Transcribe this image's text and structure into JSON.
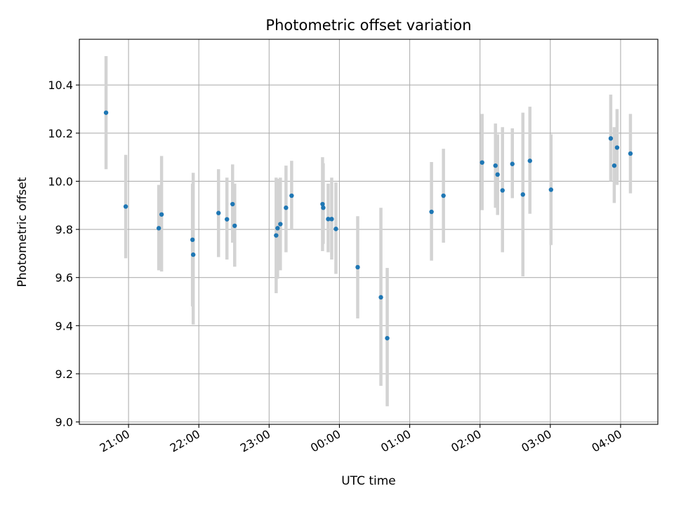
{
  "chart_data": {
    "type": "scatter",
    "title": "Photometric offset variation",
    "xlabel": "UTC time",
    "ylabel": "Photometric offset",
    "x_unit": "hours since 20:00 UTC",
    "xlim": [
      0.3,
      8.53
    ],
    "ylim": [
      8.99,
      10.59
    ],
    "grid": true,
    "x_ticks": [
      {
        "value": 1,
        "label": "21:00"
      },
      {
        "value": 2,
        "label": "22:00"
      },
      {
        "value": 3,
        "label": "23:00"
      },
      {
        "value": 4,
        "label": "00:00"
      },
      {
        "value": 5,
        "label": "01:00"
      },
      {
        "value": 6,
        "label": "02:00"
      },
      {
        "value": 7,
        "label": "03:00"
      },
      {
        "value": 8,
        "label": "04:00"
      }
    ],
    "y_ticks": [
      9.0,
      9.2,
      9.4,
      9.6,
      9.8,
      10.0,
      10.2,
      10.4
    ],
    "y_tick_labels": [
      "9.0",
      "9.2",
      "9.4",
      "9.6",
      "9.8",
      "10.0",
      "10.2",
      "10.4"
    ],
    "series": [
      {
        "name": "offset",
        "marker_color": "#1f77b4",
        "errorbar_color": "#d3d3d3",
        "points": [
          {
            "x": 0.68,
            "y": 10.285,
            "lo": 10.05,
            "hi": 10.52
          },
          {
            "x": 0.96,
            "y": 9.895,
            "lo": 9.68,
            "hi": 10.11
          },
          {
            "x": 1.43,
            "y": 9.805,
            "lo": 9.63,
            "hi": 9.985
          },
          {
            "x": 1.47,
            "y": 9.862,
            "lo": 9.625,
            "hi": 10.105
          },
          {
            "x": 1.91,
            "y": 9.757,
            "lo": 9.48,
            "hi": 9.99
          },
          {
            "x": 1.92,
            "y": 9.695,
            "lo": 9.405,
            "hi": 10.035
          },
          {
            "x": 2.28,
            "y": 9.868,
            "lo": 9.685,
            "hi": 10.05
          },
          {
            "x": 2.4,
            "y": 9.842,
            "lo": 9.675,
            "hi": 10.015
          },
          {
            "x": 2.48,
            "y": 9.905,
            "lo": 9.745,
            "hi": 10.07
          },
          {
            "x": 2.51,
            "y": 9.815,
            "lo": 9.645,
            "hi": 9.99
          },
          {
            "x": 3.1,
            "y": 9.775,
            "lo": 9.535,
            "hi": 10.015
          },
          {
            "x": 3.12,
            "y": 9.805,
            "lo": 9.595,
            "hi": 10.01
          },
          {
            "x": 3.16,
            "y": 9.822,
            "lo": 9.63,
            "hi": 10.015
          },
          {
            "x": 3.24,
            "y": 9.89,
            "lo": 9.705,
            "hi": 10.065
          },
          {
            "x": 3.32,
            "y": 9.94,
            "lo": 9.8,
            "hi": 10.085
          },
          {
            "x": 3.76,
            "y": 9.905,
            "lo": 9.71,
            "hi": 10.1
          },
          {
            "x": 3.77,
            "y": 9.89,
            "lo": 9.74,
            "hi": 10.075
          },
          {
            "x": 3.84,
            "y": 9.843,
            "lo": 9.705,
            "hi": 9.99
          },
          {
            "x": 3.89,
            "y": 9.843,
            "lo": 9.675,
            "hi": 10.015
          },
          {
            "x": 3.95,
            "y": 9.802,
            "lo": 9.615,
            "hi": 9.995
          },
          {
            "x": 4.26,
            "y": 9.643,
            "lo": 9.43,
            "hi": 9.855
          },
          {
            "x": 4.59,
            "y": 9.518,
            "lo": 9.15,
            "hi": 9.89
          },
          {
            "x": 4.68,
            "y": 9.348,
            "lo": 9.065,
            "hi": 9.64
          },
          {
            "x": 5.31,
            "y": 9.873,
            "lo": 9.67,
            "hi": 10.08
          },
          {
            "x": 5.48,
            "y": 9.94,
            "lo": 9.745,
            "hi": 10.135
          },
          {
            "x": 6.03,
            "y": 10.078,
            "lo": 9.88,
            "hi": 10.28
          },
          {
            "x": 6.22,
            "y": 10.065,
            "lo": 9.89,
            "hi": 10.24
          },
          {
            "x": 6.25,
            "y": 10.028,
            "lo": 9.86,
            "hi": 10.195
          },
          {
            "x": 6.32,
            "y": 9.962,
            "lo": 9.705,
            "hi": 10.225
          },
          {
            "x": 6.46,
            "y": 10.072,
            "lo": 9.93,
            "hi": 10.22
          },
          {
            "x": 6.61,
            "y": 9.945,
            "lo": 9.605,
            "hi": 10.285
          },
          {
            "x": 6.71,
            "y": 10.085,
            "lo": 9.865,
            "hi": 10.31
          },
          {
            "x": 7.01,
            "y": 9.965,
            "lo": 9.735,
            "hi": 10.195
          },
          {
            "x": 7.86,
            "y": 10.178,
            "lo": 10.0,
            "hi": 10.36
          },
          {
            "x": 7.91,
            "y": 10.065,
            "lo": 9.91,
            "hi": 10.225
          },
          {
            "x": 7.95,
            "y": 10.14,
            "lo": 9.985,
            "hi": 10.3
          },
          {
            "x": 8.14,
            "y": 10.115,
            "lo": 9.95,
            "hi": 10.28
          }
        ]
      }
    ]
  }
}
